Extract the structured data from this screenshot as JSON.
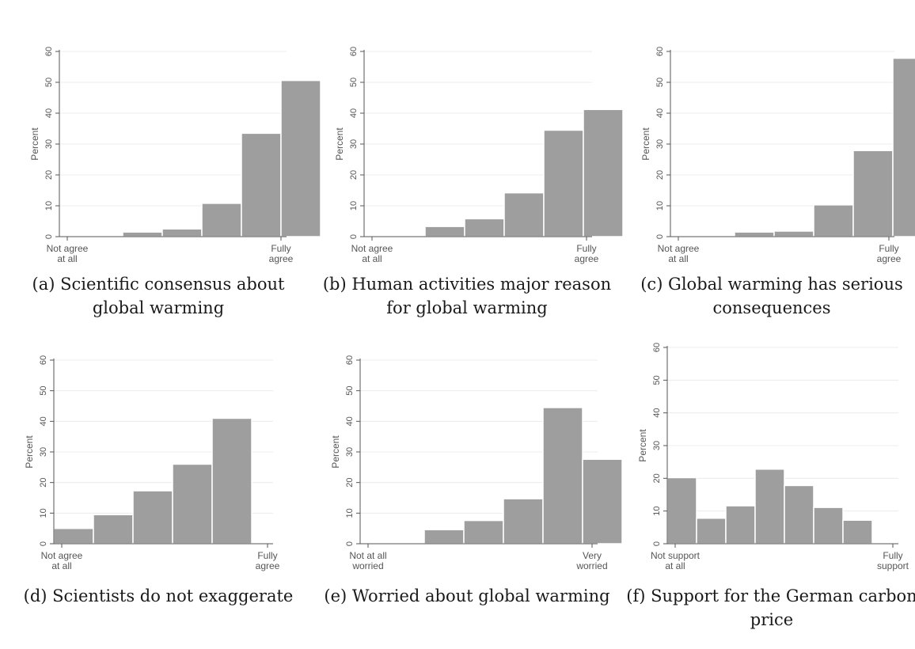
{
  "figure": {
    "y_axis_label": "Percent",
    "y_ticks": [
      0,
      10,
      20,
      30,
      40,
      50,
      60
    ]
  },
  "chart_data": [
    {
      "type": "bar",
      "caption": "(a) Scientific consensus about global warming",
      "ylabel": "Percent",
      "ylim": [
        0,
        60
      ],
      "xlabel_left": [
        "Not agree",
        "at all"
      ],
      "xlabel_right": [
        "Fully",
        "agree"
      ],
      "values": [
        0,
        1.5,
        2.5,
        10.8,
        33.5,
        50.6
      ],
      "grid": true
    },
    {
      "type": "bar",
      "caption": "(b) Human activities major reason for global warming",
      "ylabel": "Percent",
      "ylim": [
        0,
        60
      ],
      "xlabel_left": [
        "Not agree",
        "at all"
      ],
      "xlabel_right": [
        "Fully",
        "agree"
      ],
      "values": [
        0,
        3.3,
        5.8,
        14.2,
        34.5,
        41.2
      ],
      "grid": true
    },
    {
      "type": "bar",
      "caption": "(c) Global warming has serious consequences",
      "ylabel": "Percent",
      "ylim": [
        0,
        60
      ],
      "xlabel_left": [
        "Not agree",
        "at all"
      ],
      "xlabel_right": [
        "Fully",
        "agree"
      ],
      "values": [
        0,
        1.5,
        1.8,
        10.3,
        27.9,
        57.8
      ],
      "grid": true
    },
    {
      "type": "bar",
      "caption": "(d) Scientists do not exaggerate",
      "ylabel": "Percent",
      "ylim": [
        0,
        60
      ],
      "xlabel_left": [
        "Not agree",
        "at all"
      ],
      "xlabel_right": [
        "Fully",
        "agree"
      ],
      "values": [
        5.0,
        9.5,
        17.3,
        26.0,
        41.0
      ],
      "grid": true
    },
    {
      "type": "bar",
      "caption": "(e) Worried about global warming",
      "ylabel": "Percent",
      "ylim": [
        0,
        60
      ],
      "xlabel_left": [
        "Not at all",
        "worried"
      ],
      "xlabel_right": [
        "Very",
        "worried"
      ],
      "values": [
        0,
        4.6,
        7.6,
        14.7,
        44.5,
        27.6
      ],
      "grid": true
    },
    {
      "type": "bar",
      "caption": "(f) Support for the German carbon price",
      "ylabel": "Percent",
      "ylim": [
        0,
        60
      ],
      "xlabel_left": [
        "Not support",
        "at all"
      ],
      "xlabel_right": [
        "Fully",
        "support"
      ],
      "values": [
        20.2,
        7.8,
        11.6,
        22.8,
        17.8,
        11.1,
        7.2
      ],
      "grid": true
    }
  ]
}
